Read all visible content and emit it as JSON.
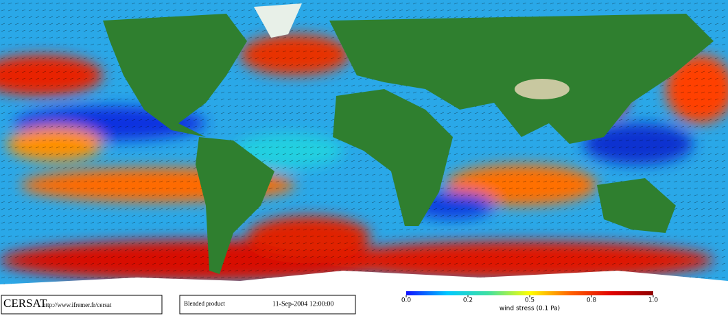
{
  "footer": {
    "logo": "CERSAT",
    "url": "http://www.ifremer.fr/cersat",
    "product": "Blended product",
    "datetime": "11-Sep-2004 12:00:00"
  },
  "colorbar": {
    "label": "wind stress (0.1 Pa)",
    "ticks": [
      {
        "value": 0,
        "label": "0.0"
      },
      0.2,
      0.5,
      0.8,
      {
        "value": 1,
        "label": "1.0"
      }
    ],
    "colors": [
      "#1010ff",
      "#00c8ff",
      "#40e0a0",
      "#ffff00",
      "#ff6000",
      "#e00000",
      "#900000"
    ]
  }
}
